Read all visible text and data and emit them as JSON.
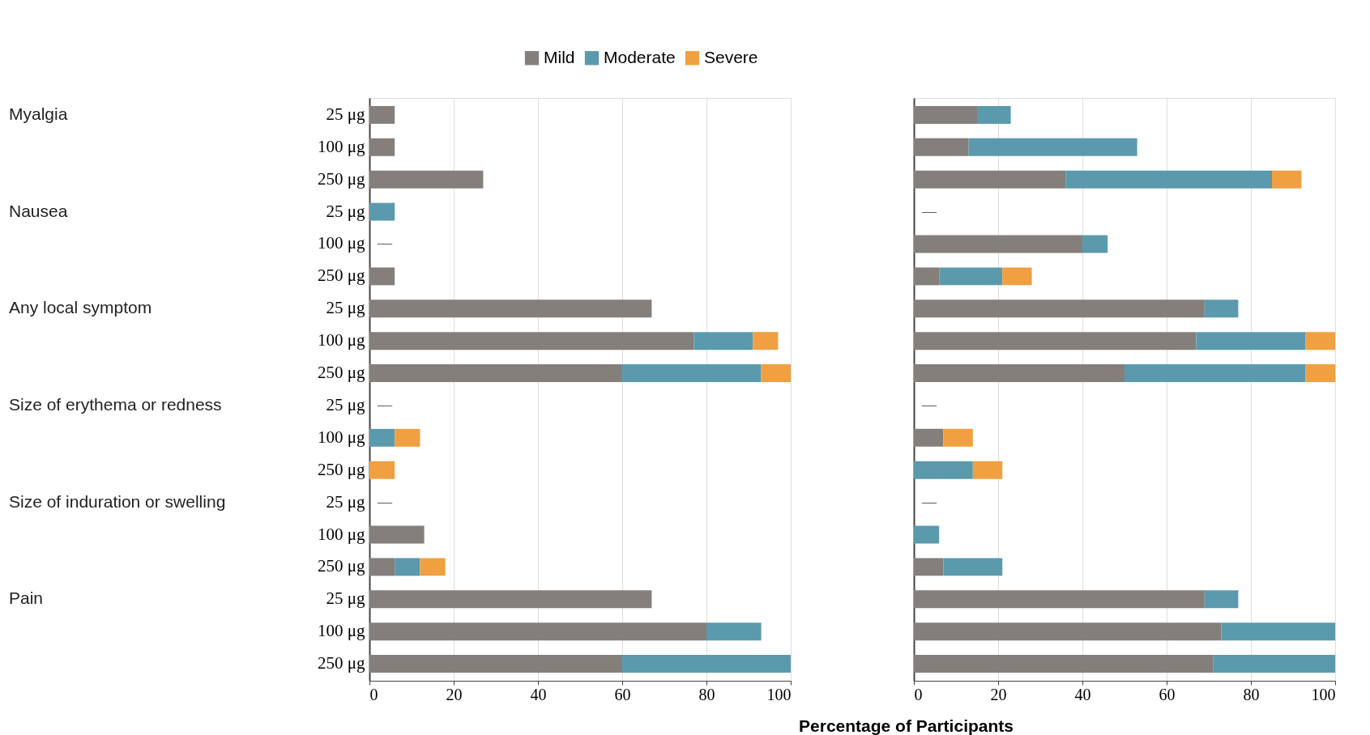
{
  "chart_data": [
    {
      "type": "bar",
      "orientation": "horizontal",
      "stacked": true,
      "grid": "x",
      "legend": "top",
      "xlim": [
        0,
        100
      ],
      "xticks": [
        0,
        20,
        40,
        60,
        80,
        100
      ],
      "categories": [
        "25 μg",
        "100 μg",
        "250 μg",
        "25 μg",
        "100 μg",
        "250 μg",
        "25 μg",
        "100 μg",
        "250 μg",
        "25 μg",
        "100 μg",
        "250 μg",
        "25 μg",
        "100 μg",
        "250 μg",
        "25 μg",
        "100 μg",
        "250 μg"
      ],
      "annotations": [
        "Myalgia",
        "Nausea",
        "Any local symptom",
        "Size of erythema or redness",
        "Size of induration or swelling",
        "Pain"
      ],
      "series": [
        {
          "name": "Mild",
          "color": "#857f7b",
          "values": [
            6,
            6,
            27,
            0,
            0,
            6,
            67,
            77,
            60,
            0,
            0,
            0,
            0,
            13,
            6,
            67,
            80,
            60
          ],
          "value_labels": [
            null,
            null,
            null,
            null,
            "—",
            null,
            null,
            null,
            null,
            "—",
            null,
            null,
            "—",
            null,
            null,
            null,
            null,
            null
          ]
        },
        {
          "name": "Moderate",
          "color": "#5b9aad",
          "values": [
            0,
            0,
            0,
            6,
            0,
            0,
            0,
            14,
            33,
            0,
            6,
            0,
            0,
            0,
            6,
            0,
            13,
            40
          ]
        },
        {
          "name": "Severe",
          "color": "#f0a040",
          "values": [
            0,
            0,
            0,
            0,
            0,
            0,
            0,
            6,
            7,
            0,
            6,
            6,
            0,
            0,
            6,
            0,
            0,
            0
          ]
        }
      ]
    },
    {
      "type": "bar",
      "orientation": "horizontal",
      "stacked": true,
      "grid": "x",
      "tick_labels": "x",
      "xlim": [
        0,
        100
      ],
      "xticks": [
        0,
        20,
        40,
        60,
        80,
        100
      ],
      "xlabel": "Percentage of Participants",
      "series": [
        {
          "color": "#857f7b",
          "values": [
            15,
            13,
            36,
            0,
            40,
            6,
            69,
            67,
            50,
            0,
            7,
            0,
            0,
            0,
            7,
            69,
            73,
            71
          ],
          "value_labels": [
            null,
            null,
            null,
            "—",
            null,
            null,
            null,
            null,
            null,
            "—",
            null,
            null,
            "—",
            null,
            null,
            null,
            null,
            null
          ]
        },
        {
          "color": "#5b9aad",
          "values": [
            8,
            40,
            49,
            0,
            6,
            15,
            8,
            26,
            43,
            0,
            0,
            14,
            0,
            6,
            14,
            8,
            27,
            29
          ]
        },
        {
          "color": "#f0a040",
          "values": [
            0,
            0,
            7,
            0,
            0,
            7,
            0,
            7,
            7,
            0,
            7,
            7,
            0,
            0,
            0,
            0,
            0,
            0
          ]
        }
      ]
    }
  ]
}
